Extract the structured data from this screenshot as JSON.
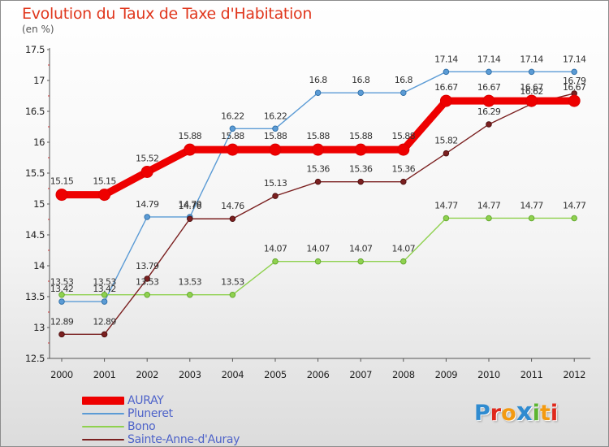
{
  "header": {
    "title": "Evolution du Taux de Taxe d'Habitation",
    "unit": "(en %)"
  },
  "logo": {
    "letters": [
      "P",
      "r",
      "o",
      "x",
      "i",
      "t",
      "i"
    ],
    "colors": [
      "#2f8bd0",
      "#e0281c",
      "#f39a11",
      "#2f8bd0",
      "#5cb531",
      "#f39a11",
      "#e0281c"
    ]
  },
  "chart_data": {
    "type": "line",
    "title": "Evolution du Taux de Taxe d'Habitation",
    "ylabel": "(en %)",
    "xlabel": "",
    "x": [
      "2000",
      "2001",
      "2002",
      "2003",
      "2004",
      "2005",
      "2006",
      "2007",
      "2008",
      "2009",
      "2010",
      "2011",
      "2012"
    ],
    "ylim": [
      12.5,
      17.5
    ],
    "yticks": [
      "12.5",
      "13",
      "13.5",
      "14",
      "14.5",
      "15",
      "15.5",
      "16",
      "16.5",
      "17",
      "17.5"
    ],
    "grid": false,
    "legend_position": "bottom-left",
    "series": [
      {
        "name": "AURAY",
        "color": "#ee0000",
        "values": [
          15.15,
          15.15,
          15.52,
          15.88,
          15.88,
          15.88,
          15.88,
          15.88,
          15.88,
          16.67,
          16.67,
          16.67,
          16.67
        ],
        "labels": [
          "15.15",
          "15.15",
          "15.52",
          "15.88",
          "15.88",
          "15.88",
          "15.88",
          "15.88",
          "15.88",
          "16.67",
          "16.67",
          "16.67",
          "16.67"
        ]
      },
      {
        "name": "Pluneret",
        "color": "#5b9bd5",
        "values": [
          13.42,
          13.42,
          14.79,
          14.79,
          16.22,
          16.22,
          16.8,
          16.8,
          16.8,
          17.14,
          17.14,
          17.14,
          17.14
        ],
        "labels": [
          "13.42",
          "13.42",
          "14.79",
          "14.79",
          "16.22",
          "16.22",
          "16.8",
          "16.8",
          "16.8",
          "17.14",
          "17.14",
          "17.14",
          "17.14"
        ]
      },
      {
        "name": "Bono",
        "color": "#8fd14f",
        "values": [
          13.53,
          13.53,
          13.53,
          13.53,
          13.53,
          14.07,
          14.07,
          14.07,
          14.07,
          14.77,
          14.77,
          14.77,
          14.77
        ],
        "labels": [
          "13.53",
          "13.53",
          "13.53",
          "13.53",
          "13.53",
          "14.07",
          "14.07",
          "14.07",
          "14.07",
          "14.77",
          "14.77",
          "14.77",
          "14.77"
        ]
      },
      {
        "name": "Sainte-Anne-d'Auray",
        "color": "#7b2020",
        "values": [
          12.89,
          12.89,
          13.79,
          14.76,
          14.76,
          15.13,
          15.36,
          15.36,
          15.36,
          15.82,
          16.29,
          16.62,
          16.79
        ],
        "labels": [
          "12.89",
          "12.89",
          "13.79",
          "14.76",
          "14.76",
          "15.13",
          "15.36",
          "15.36",
          "15.36",
          "15.82",
          "16.29",
          "16.62",
          "16.79"
        ]
      }
    ]
  }
}
